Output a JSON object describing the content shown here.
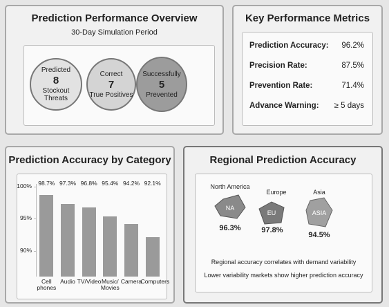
{
  "overview": {
    "title": "Prediction Performance Overview",
    "subtitle": "30-Day Simulation Period",
    "circles": [
      {
        "top": "Predicted",
        "value": "8",
        "bottom": "Stockout Threats"
      },
      {
        "top": "Correct",
        "value": "7",
        "bottom": "True Positives"
      },
      {
        "top": "Successfully",
        "value": "5",
        "bottom": "Prevented"
      }
    ]
  },
  "metrics": {
    "title": "Key Performance Metrics",
    "rows": [
      {
        "label": "Prediction Accuracy:",
        "value": "96.2%"
      },
      {
        "label": "Precision Rate:",
        "value": "87.5%"
      },
      {
        "label": "Prevention Rate:",
        "value": "71.4%"
      },
      {
        "label": "Advance Warning:",
        "value": "≥ 5 days"
      }
    ]
  },
  "chart_data": {
    "type": "bar",
    "title": "Prediction Accuracy by Category",
    "categories": [
      "Cell phones",
      "Audio",
      "TV/Video",
      "Music/ Movies",
      "Camera",
      "Computers"
    ],
    "values": [
      98.7,
      97.3,
      96.8,
      95.4,
      94.2,
      92.1
    ],
    "value_labels": [
      "98.7%",
      "97.3%",
      "96.8%",
      "95.4%",
      "94.2%",
      "92.1%"
    ],
    "color": "#9a9a9a",
    "ylim": [
      86,
      100
    ],
    "yticks": [
      {
        "value": 90,
        "label": "90%"
      },
      {
        "value": 95,
        "label": "95%"
      },
      {
        "value": 100,
        "label": "100%"
      }
    ]
  },
  "regional": {
    "title": "Regional Prediction Accuracy",
    "regions": [
      {
        "name": "North America",
        "code": "NA",
        "accuracy": "96.3%"
      },
      {
        "name": "Europe",
        "code": "EU",
        "accuracy": "97.8%"
      },
      {
        "name": "Asia",
        "code": "ASIA",
        "accuracy": "94.5%"
      }
    ],
    "notes": [
      "Regional accuracy correlates with demand variability",
      "Lower variability markets show higher prediction accuracy"
    ]
  }
}
